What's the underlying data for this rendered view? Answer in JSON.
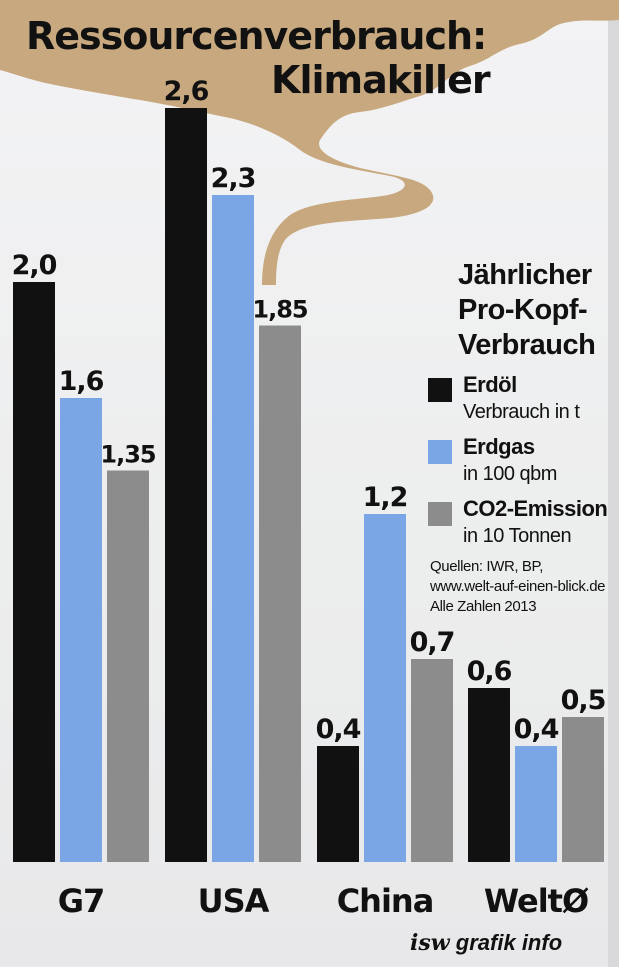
{
  "title": {
    "line1": "Ressourcenverbrauch:",
    "line2": "Klimakiller"
  },
  "legend": {
    "title_lines": [
      "Jährlicher",
      "Pro-Kopf-",
      "Verbrauch"
    ],
    "items": [
      {
        "name": "Erdöl",
        "unit": "Verbrauch in t",
        "color": "#111111"
      },
      {
        "name": "Erdgas",
        "unit": "in 100 qbm",
        "color": "#7ba6e6"
      },
      {
        "name": "CO2-Emission",
        "unit": "in 10 Tonnen",
        "color": "#8c8c8c"
      }
    ]
  },
  "sources": [
    "Quellen: IWR, BP,",
    "www.welt-auf-einen-blick.de",
    "Alle Zahlen 2013"
  ],
  "brand": {
    "prefix": "isw",
    "suffix": " grafik info"
  },
  "chart_data": {
    "type": "bar",
    "categories": [
      "G7",
      "USA",
      "China",
      "WeltØ"
    ],
    "series": [
      {
        "name": "Erdöl",
        "values": [
          2.0,
          2.6,
          0.4,
          0.6
        ],
        "labels": [
          "2,0",
          "2,6",
          "0,4",
          "0,6"
        ]
      },
      {
        "name": "Erdgas",
        "values": [
          1.6,
          2.3,
          1.2,
          0.4
        ],
        "labels": [
          "1,6",
          "2,3",
          "1,2",
          "0,4"
        ]
      },
      {
        "name": "CO2-Emission",
        "values": [
          1.35,
          1.85,
          0.7,
          0.5
        ],
        "labels": [
          "1,35",
          "1,85",
          "0,7",
          "0,5"
        ]
      }
    ],
    "colors": [
      "#111111",
      "#7ba6e6",
      "#8c8c8c"
    ],
    "ylim": [
      0,
      2.6
    ],
    "grid": false,
    "legend": "right"
  }
}
